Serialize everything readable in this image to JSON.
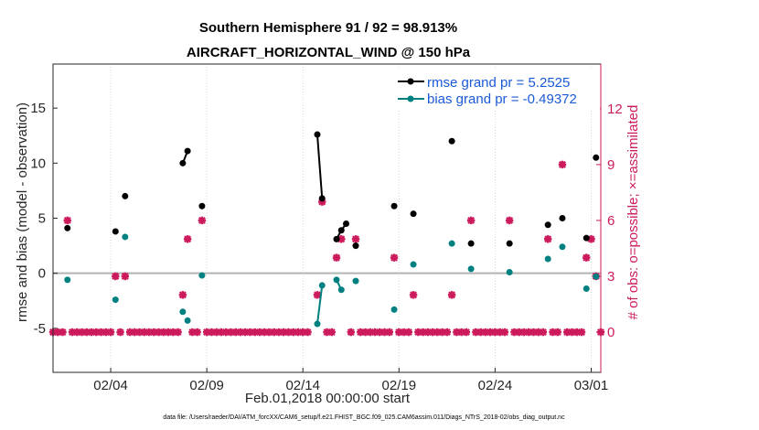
{
  "chart_data": {
    "type": "scatter",
    "title": "Southern Hemisphere 91 / 92 = 98.913%",
    "subtitle": "AIRCRAFT_HORIZONTAL_WIND @ 150 hPa",
    "xlabel": "Feb.01,2018 00:00:00 start",
    "ylabel": "rmse and bias (model - observation)",
    "ylabel_right": "# of obs: o=possible; ×=assimilated",
    "xlim": [
      0,
      28.5
    ],
    "ylim": [
      -9,
      19
    ],
    "ylim_right": [
      -2.16,
      14.4
    ],
    "yticks": [
      -5,
      0,
      5,
      10,
      15
    ],
    "yticks_right": [
      0,
      3,
      6,
      9,
      12
    ],
    "xtick_positions": [
      3,
      8,
      13,
      18,
      23,
      28
    ],
    "xtick_labels": [
      "02/04",
      "02/09",
      "02/14",
      "02/19",
      "02/24",
      "03/01"
    ],
    "zero_line": 0,
    "legend": [
      {
        "label": "rmse grand pr = 5.2525",
        "color": "#000000"
      },
      {
        "label": "bias grand pr = -0.49372",
        "color": "#008080"
      }
    ],
    "series": [
      {
        "name": "rmse",
        "color": "#000000",
        "points": [
          [
            0.75,
            4.1
          ],
          [
            3.25,
            3.8
          ],
          [
            3.75,
            7.0
          ],
          [
            6.75,
            10.0
          ],
          [
            7.0,
            11.1
          ],
          [
            7.75,
            6.1
          ],
          [
            13.75,
            12.6
          ],
          [
            14.0,
            6.8
          ],
          [
            14.75,
            3.1
          ],
          [
            15.0,
            3.9
          ],
          [
            15.25,
            4.5
          ],
          [
            15.75,
            2.5
          ],
          [
            17.75,
            6.1
          ],
          [
            18.75,
            5.4
          ],
          [
            20.75,
            12.0
          ],
          [
            21.75,
            2.7
          ],
          [
            23.75,
            2.7
          ],
          [
            25.75,
            4.4
          ],
          [
            26.5,
            5.0
          ],
          [
            27.75,
            3.2
          ],
          [
            28.25,
            10.5
          ]
        ],
        "connected": [
          [
            6.75,
            7.0
          ],
          [
            13.75,
            14.0
          ],
          [
            14.75,
            15.0,
            15.25
          ]
        ]
      },
      {
        "name": "bias",
        "color": "#008080",
        "points": [
          [
            0.75,
            -0.6
          ],
          [
            3.25,
            -2.4
          ],
          [
            3.75,
            3.3
          ],
          [
            6.75,
            -3.5
          ],
          [
            7.0,
            -4.3
          ],
          [
            7.75,
            -0.2
          ],
          [
            13.75,
            -4.6
          ],
          [
            14.0,
            -1.1
          ],
          [
            14.75,
            -0.6
          ],
          [
            15.0,
            -1.5
          ],
          [
            15.75,
            -0.7
          ],
          [
            17.75,
            -3.3
          ],
          [
            18.75,
            0.8
          ],
          [
            20.75,
            2.7
          ],
          [
            21.75,
            0.4
          ],
          [
            23.75,
            0.1
          ],
          [
            25.75,
            1.3
          ],
          [
            26.5,
            2.4
          ],
          [
            27.75,
            -1.4
          ],
          [
            28.25,
            -0.3
          ]
        ],
        "connected": [
          [
            13.75,
            14.0
          ],
          [
            14.75,
            15.0
          ]
        ]
      },
      {
        "name": "obs possible / assimilated",
        "axis": "right",
        "color": "#cc1b5d",
        "points": [
          [
            0.75,
            6
          ],
          [
            3.25,
            3
          ],
          [
            3.75,
            3
          ],
          [
            6.75,
            2
          ],
          [
            7.0,
            5
          ],
          [
            7.75,
            6
          ],
          [
            13.75,
            2
          ],
          [
            14.0,
            7
          ],
          [
            14.75,
            4
          ],
          [
            15.0,
            5
          ],
          [
            15.75,
            5
          ],
          [
            17.75,
            4
          ],
          [
            18.75,
            2
          ],
          [
            20.75,
            2
          ],
          [
            21.75,
            6
          ],
          [
            23.75,
            6
          ],
          [
            25.75,
            5
          ],
          [
            26.5,
            9
          ],
          [
            27.75,
            4
          ],
          [
            28.0,
            5
          ],
          [
            28.25,
            3
          ]
        ],
        "zero_points": [
          0.0,
          0.25,
          0.5,
          1.0,
          1.25,
          1.5,
          1.75,
          2.0,
          2.25,
          2.5,
          2.75,
          3.0,
          3.5,
          4.0,
          4.25,
          4.5,
          4.75,
          5.0,
          5.25,
          5.5,
          5.75,
          6.0,
          6.25,
          6.5,
          7.25,
          7.5,
          8.0,
          8.25,
          8.5,
          8.75,
          9.0,
          9.25,
          9.5,
          9.75,
          10.0,
          10.25,
          10.5,
          10.75,
          11.0,
          11.25,
          11.5,
          11.75,
          12.0,
          12.25,
          12.5,
          12.75,
          13.0,
          13.25,
          14.25,
          14.5,
          15.5,
          16.0,
          16.25,
          16.5,
          16.75,
          17.0,
          17.25,
          17.5,
          18.0,
          18.25,
          18.5,
          19.0,
          19.25,
          19.5,
          19.75,
          20.0,
          20.25,
          20.5,
          21.0,
          21.25,
          21.5,
          22.0,
          22.25,
          22.5,
          22.75,
          23.0,
          23.25,
          23.5,
          24.0,
          24.25,
          24.5,
          24.75,
          25.0,
          25.25,
          25.5,
          26.0,
          26.25,
          26.75,
          27.0,
          27.25,
          27.5,
          28.5
        ]
      }
    ]
  },
  "footer": "data file: /Users/raeder/DAI/ATM_forcXX/CAM6_setup/f.e21.FHIST_BGC.f09_025.CAM6assim.011/Diags_NTrS_2018-02/obs_diag_output.nc"
}
